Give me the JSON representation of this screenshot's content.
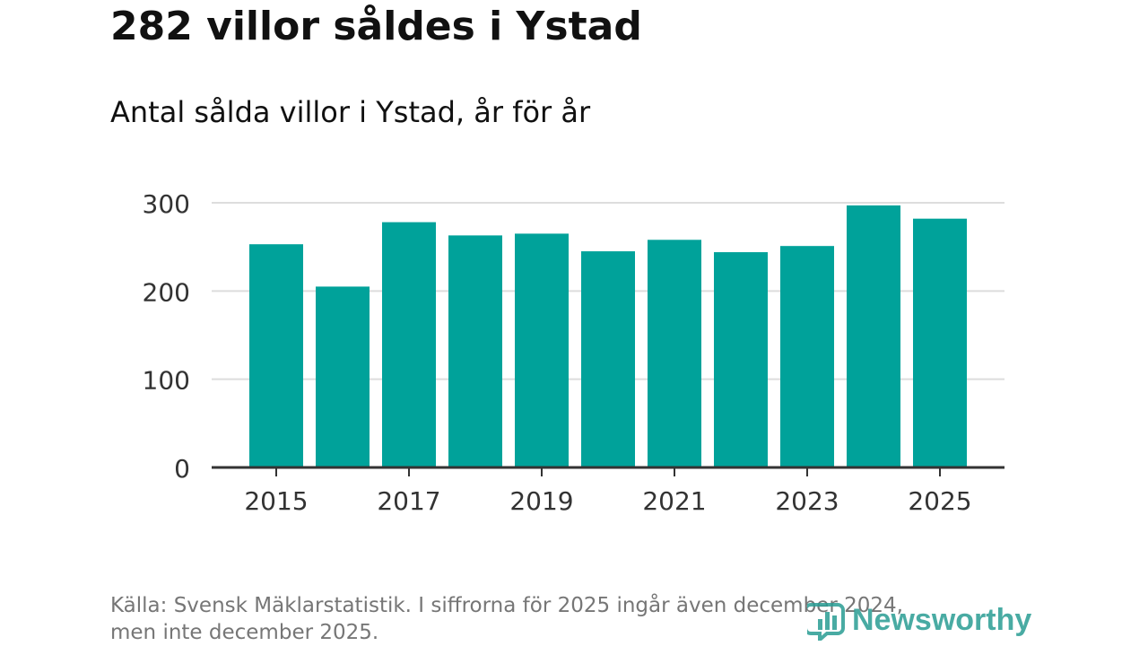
{
  "header": {
    "title": "282 villor såldes i Ystad",
    "subtitle": "Antal sålda villor i Ystad, år för år"
  },
  "footer": {
    "source_line1": "Källa: Svensk Mäklarstatistik. I siffrorna för 2025 ingår även december 2024,",
    "source_line2": "men inte december 2025.",
    "brand_name": "Newsworthy"
  },
  "colors": {
    "bar": "#00a29a",
    "grid": "#dddddd",
    "axis": "#333333",
    "text": "#111111",
    "muted": "#767676",
    "brand": "#2a9d94"
  },
  "chart_data": {
    "type": "bar",
    "title": "282 villor såldes i Ystad",
    "subtitle": "Antal sålda villor i Ystad, år för år",
    "xlabel": "",
    "ylabel": "",
    "categories": [
      "2015",
      "2016",
      "2017",
      "2018",
      "2019",
      "2020",
      "2021",
      "2022",
      "2023",
      "2024",
      "2025"
    ],
    "values": [
      253,
      205,
      278,
      263,
      265,
      245,
      258,
      244,
      251,
      297,
      282
    ],
    "x_tick_labels": [
      "2015",
      "2017",
      "2019",
      "2021",
      "2023",
      "2025"
    ],
    "y_ticks": [
      0,
      100,
      200,
      300
    ],
    "ylim": [
      0,
      300
    ],
    "grid": true,
    "legend": "none"
  }
}
